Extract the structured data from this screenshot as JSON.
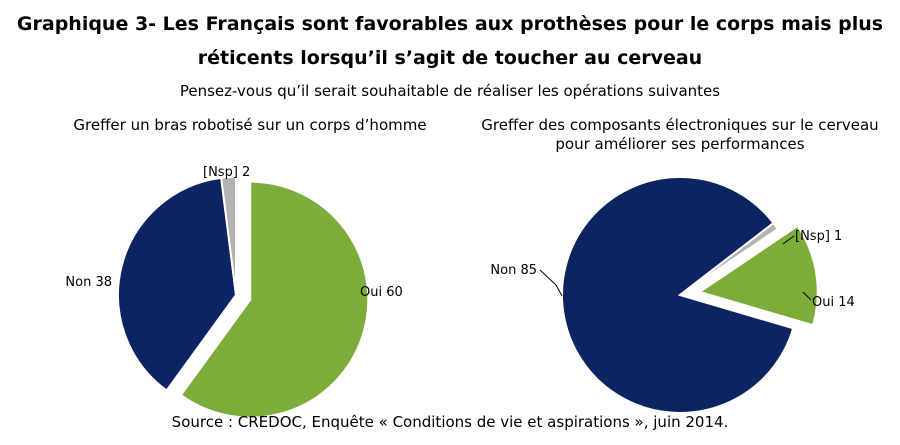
{
  "title_line1": "Graphique 3- Les Français sont favorables aux prothèses pour le corps mais plus",
  "title_line2": "réticents lorsqu’il s’agit de toucher au cerveau",
  "subtitle": "Pensez-vous qu’il serait souhaitable de réaliser les opérations suivantes",
  "source": "Source : CREDOC, Enquête « Conditions de vie et aspirations », juin 2014.",
  "colors": {
    "oui": "#7cad3a",
    "non": "#0c2461",
    "nsp": "#b3b3b3"
  },
  "chart_data": [
    {
      "type": "pie",
      "title_line1": "Greffer un bras robotisé sur un corps d’homme",
      "title_line2": "",
      "slices": [
        {
          "label": "Oui",
          "value": 60,
          "display": "Oui 60"
        },
        {
          "label": "Non",
          "value": 38,
          "display": "Non 38"
        },
        {
          "label": "[Nsp]",
          "value": 2,
          "display": "[Nsp] 2"
        }
      ]
    },
    {
      "type": "pie",
      "title_line1": "Greffer des composants électroniques sur le cerveau",
      "title_line2": "pour améliorer ses performances",
      "slices": [
        {
          "label": "Oui",
          "value": 14,
          "display": "Oui 14"
        },
        {
          "label": "Non",
          "value": 85,
          "display": "Non 85"
        },
        {
          "label": "[Nsp]",
          "value": 1,
          "display": "[Nsp] 1"
        }
      ]
    }
  ]
}
